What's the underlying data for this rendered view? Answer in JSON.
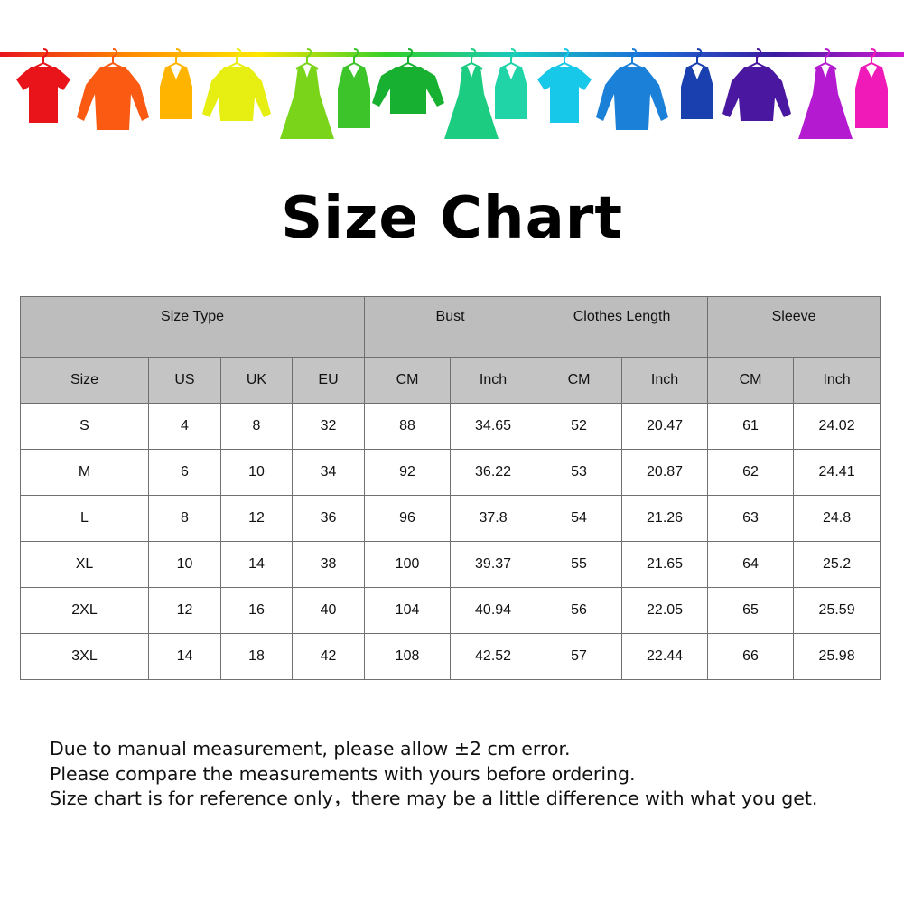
{
  "banner": {
    "rod_colors": [
      "#e8141c",
      "#ff8a00",
      "#ffe600",
      "#32d02a",
      "#18c8c0",
      "#1a6ed8",
      "#3a1aa0",
      "#d21ad2"
    ],
    "clothes": [
      {
        "icon": "t-shirt-icon",
        "color": "#e9141a"
      },
      {
        "icon": "shirt-icon",
        "color": "#fb5a12"
      },
      {
        "icon": "tank-top-icon",
        "color": "#ffb400"
      },
      {
        "icon": "sweater-icon",
        "color": "#e6ee12"
      },
      {
        "icon": "dress-icon",
        "color": "#7ad41a"
      },
      {
        "icon": "belted-dress-icon",
        "color": "#3cc42a"
      },
      {
        "icon": "long-sleeve-icon",
        "color": "#18b030"
      },
      {
        "icon": "dress-icon",
        "color": "#1ccc80"
      },
      {
        "icon": "tank-top-icon",
        "color": "#20d4a8"
      },
      {
        "icon": "t-shirt-icon",
        "color": "#18c8e8"
      },
      {
        "icon": "shirt-icon",
        "color": "#1a80d8"
      },
      {
        "icon": "tank-top-icon",
        "color": "#1a40b0"
      },
      {
        "icon": "sweater-icon",
        "color": "#4a18a0"
      },
      {
        "icon": "dress-icon",
        "color": "#b41ad0"
      },
      {
        "icon": "belted-dress-icon",
        "color": "#f01ab8"
      }
    ]
  },
  "title": "Size Chart",
  "table": {
    "group_headers": [
      "Size Type",
      "Bust",
      "Clothes Length",
      "Sleeve"
    ],
    "sub_headers": [
      "Size",
      "US",
      "UK",
      "EU",
      "CM",
      "Inch",
      "CM",
      "Inch",
      "CM",
      "Inch"
    ],
    "rows": [
      [
        "S",
        "4",
        "8",
        "32",
        "88",
        "34.65",
        "52",
        "20.47",
        "61",
        "24.02"
      ],
      [
        "M",
        "6",
        "10",
        "34",
        "92",
        "36.22",
        "53",
        "20.87",
        "62",
        "24.41"
      ],
      [
        "L",
        "8",
        "12",
        "36",
        "96",
        "37.8",
        "54",
        "21.26",
        "63",
        "24.8"
      ],
      [
        "XL",
        "10",
        "14",
        "38",
        "100",
        "39.37",
        "55",
        "21.65",
        "64",
        "25.2"
      ],
      [
        "2XL",
        "12",
        "16",
        "40",
        "104",
        "40.94",
        "56",
        "22.05",
        "65",
        "25.59"
      ],
      [
        "3XL",
        "14",
        "18",
        "42",
        "108",
        "42.52",
        "57",
        "22.44",
        "66",
        "25.98"
      ]
    ],
    "header_bg": "#bdbdbd"
  },
  "notes": [
    "Due to manual measurement, please allow ±2 cm error.",
    "Please compare the measurements with yours before ordering.",
    "Size chart is for reference only，there may be a little difference with what you get."
  ]
}
